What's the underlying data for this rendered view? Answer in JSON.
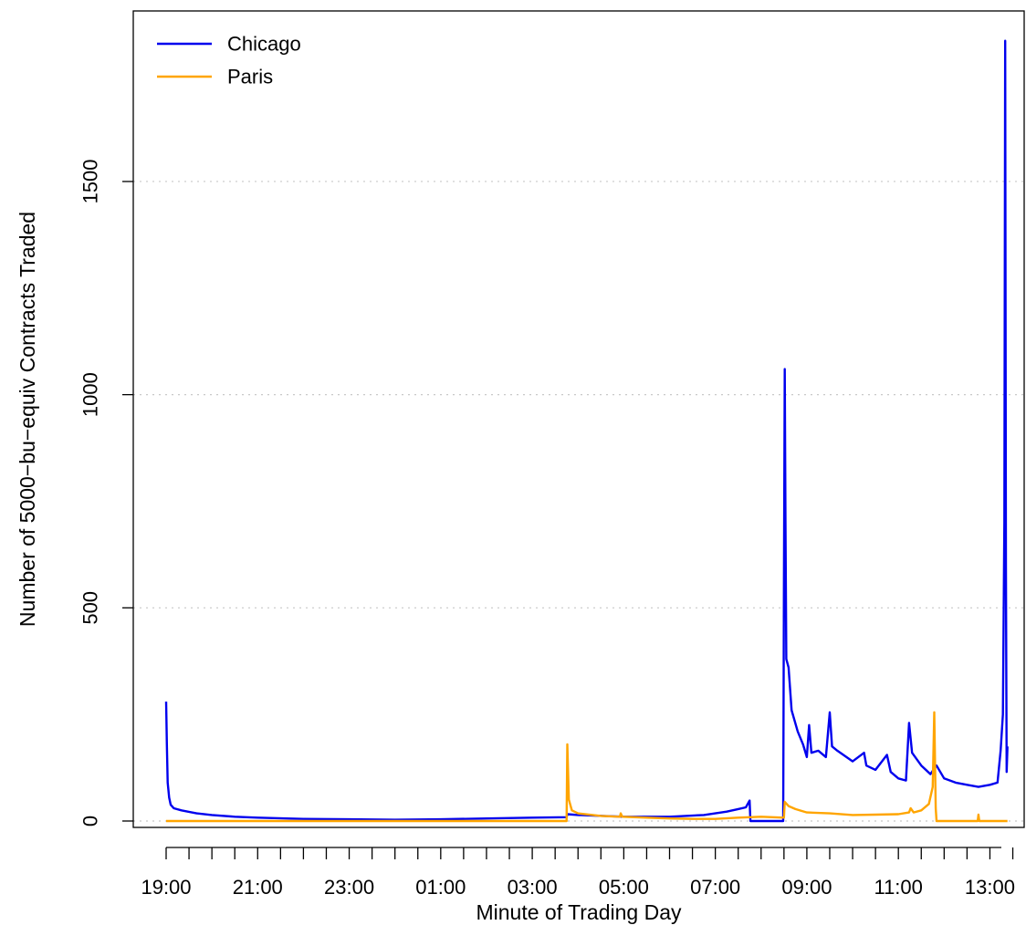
{
  "chart_data": {
    "type": "line",
    "title": "",
    "xlabel": "Minute of Trading Day",
    "ylabel": "Number of 5000−bu−equiv Contracts Traded",
    "ylim": [
      -15,
      1900
    ],
    "y_ticks": [
      0,
      500,
      1000,
      1500
    ],
    "x_tick_labels": [
      "19:00",
      "21:00",
      "23:00",
      "01:00",
      "03:00",
      "05:00",
      "07:00",
      "09:00",
      "11:00",
      "13:00"
    ],
    "x_minor_ticks_per_hour": 2,
    "x_range_hours_since_1900": [
      0,
      18.25
    ],
    "grid": "horizontal dotted at y ticks",
    "legend_position": "top-left",
    "series": [
      {
        "name": "Chicago",
        "color": "#0000ee",
        "points": [
          [
            "19:00",
            280
          ],
          [
            "19:01",
            180
          ],
          [
            "19:02",
            90
          ],
          [
            "19:04",
            55
          ],
          [
            "19:06",
            38
          ],
          [
            "19:10",
            30
          ],
          [
            "19:20",
            25
          ],
          [
            "19:40",
            18
          ],
          [
            "20:00",
            14
          ],
          [
            "20:30",
            10
          ],
          [
            "21:00",
            8
          ],
          [
            "22:00",
            5
          ],
          [
            "23:00",
            4
          ],
          [
            "00:00",
            3
          ],
          [
            "01:00",
            4
          ],
          [
            "02:00",
            6
          ],
          [
            "03:00",
            8
          ],
          [
            "03:45",
            9
          ],
          [
            "03:46",
            16
          ],
          [
            "04:00",
            14
          ],
          [
            "05:00",
            10
          ],
          [
            "06:00",
            10
          ],
          [
            "06:45",
            14
          ],
          [
            "07:00",
            18
          ],
          [
            "07:15",
            22
          ],
          [
            "07:30",
            28
          ],
          [
            "07:40",
            32
          ],
          [
            "07:45",
            48
          ],
          [
            "07:46",
            0
          ],
          [
            "08:29",
            0
          ],
          [
            "08:30",
            540
          ],
          [
            "08:31",
            1060
          ],
          [
            "08:32",
            700
          ],
          [
            "08:33",
            380
          ],
          [
            "08:36",
            360
          ],
          [
            "08:40",
            260
          ],
          [
            "08:48",
            210
          ],
          [
            "08:55",
            180
          ],
          [
            "09:00",
            150
          ],
          [
            "09:03",
            225
          ],
          [
            "09:06",
            160
          ],
          [
            "09:15",
            165
          ],
          [
            "09:25",
            150
          ],
          [
            "09:30",
            255
          ],
          [
            "09:33",
            175
          ],
          [
            "09:40",
            165
          ],
          [
            "10:00",
            140
          ],
          [
            "10:15",
            160
          ],
          [
            "10:18",
            130
          ],
          [
            "10:30",
            120
          ],
          [
            "10:45",
            155
          ],
          [
            "10:50",
            115
          ],
          [
            "11:00",
            100
          ],
          [
            "11:10",
            95
          ],
          [
            "11:14",
            230
          ],
          [
            "11:18",
            160
          ],
          [
            "11:30",
            130
          ],
          [
            "11:42",
            110
          ],
          [
            "11:50",
            130
          ],
          [
            "12:00",
            100
          ],
          [
            "12:15",
            90
          ],
          [
            "12:30",
            85
          ],
          [
            "12:45",
            80
          ],
          [
            "13:00",
            85
          ],
          [
            "13:10",
            90
          ],
          [
            "13:14",
            165
          ],
          [
            "13:17",
            250
          ],
          [
            "13:19",
            700
          ],
          [
            "13:20",
            1830
          ],
          [
            "13:21",
            600
          ],
          [
            "13:22",
            115
          ],
          [
            "13:23",
            175
          ]
        ]
      },
      {
        "name": "Paris",
        "color": "#ffa500",
        "points": [
          [
            "19:00",
            0
          ],
          [
            "03:45",
            0
          ],
          [
            "03:46",
            180
          ],
          [
            "03:48",
            50
          ],
          [
            "03:52",
            25
          ],
          [
            "04:00",
            18
          ],
          [
            "04:30",
            12
          ],
          [
            "04:55",
            10
          ],
          [
            "04:56",
            18
          ],
          [
            "04:58",
            10
          ],
          [
            "05:30",
            8
          ],
          [
            "06:00",
            6
          ],
          [
            "06:30",
            5
          ],
          [
            "07:00",
            5
          ],
          [
            "07:30",
            8
          ],
          [
            "08:00",
            10
          ],
          [
            "08:30",
            8
          ],
          [
            "08:31",
            45
          ],
          [
            "08:36",
            35
          ],
          [
            "08:45",
            28
          ],
          [
            "09:00",
            20
          ],
          [
            "09:30",
            18
          ],
          [
            "10:00",
            14
          ],
          [
            "10:30",
            15
          ],
          [
            "11:00",
            16
          ],
          [
            "11:14",
            20
          ],
          [
            "11:16",
            30
          ],
          [
            "11:20",
            20
          ],
          [
            "11:30",
            25
          ],
          [
            "11:40",
            40
          ],
          [
            "11:45",
            80
          ],
          [
            "11:47",
            255
          ],
          [
            "11:49",
            30
          ],
          [
            "11:50",
            0
          ],
          [
            "12:44",
            0
          ],
          [
            "12:45",
            15
          ],
          [
            "12:46",
            0
          ],
          [
            "13:23",
            0
          ]
        ]
      }
    ]
  }
}
